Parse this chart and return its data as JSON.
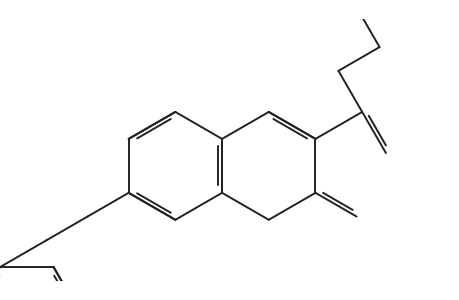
{
  "bg": "#ffffff",
  "lc": "#222222",
  "lw": 1.4,
  "dbo": 0.048,
  "b": 0.68,
  "figsize": [
    4.6,
    3.0
  ],
  "dpi": 100,
  "xlim": [
    -2.9,
    2.9
  ],
  "ylim": [
    -1.55,
    1.75
  ]
}
